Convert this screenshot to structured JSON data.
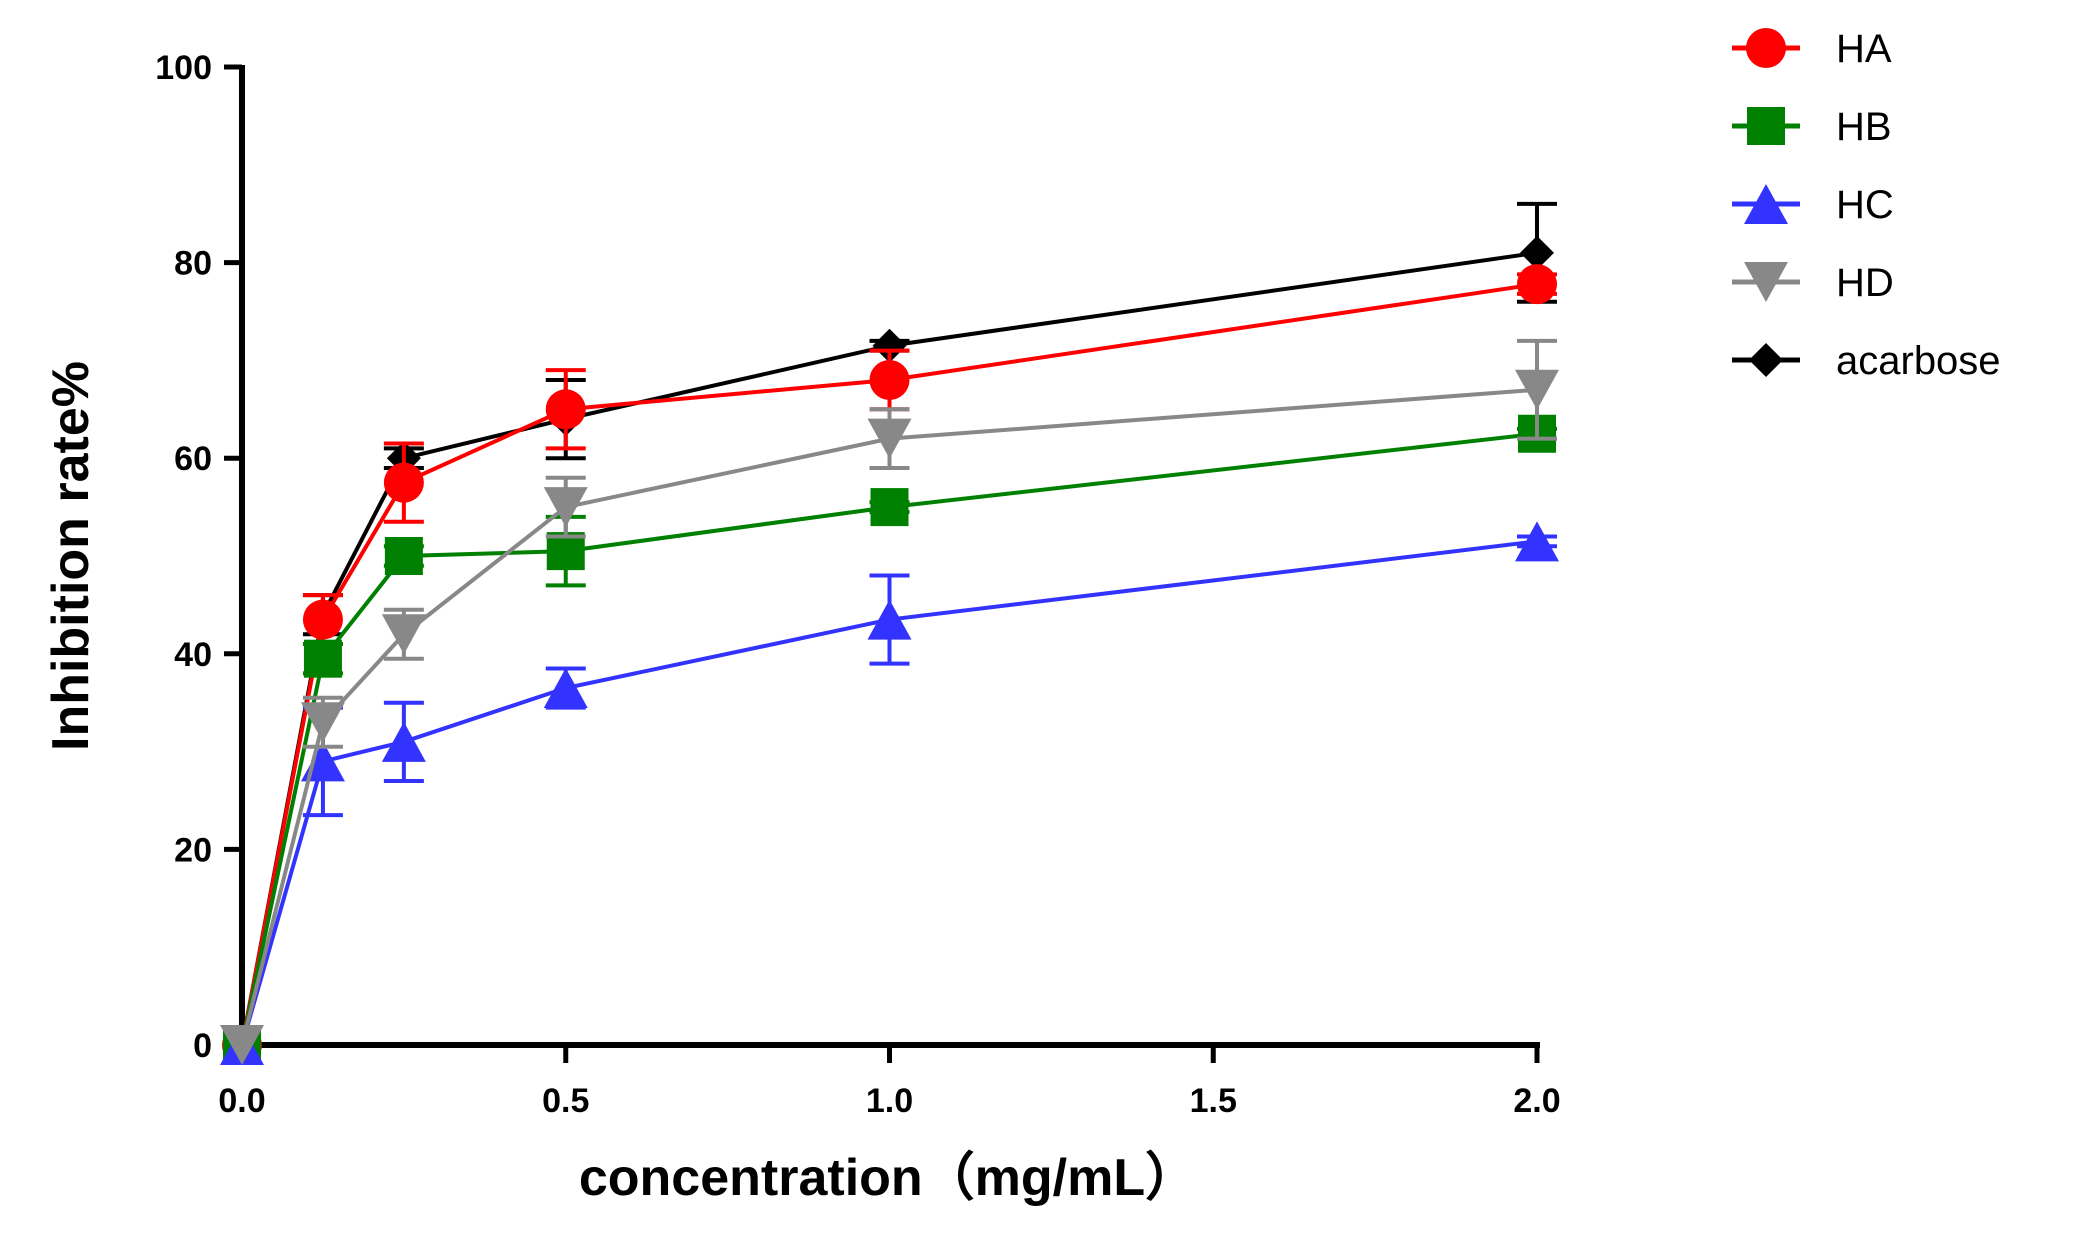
{
  "chart_data": {
    "type": "line",
    "title": "",
    "xlabel": "concentration（mg/mL）",
    "ylabel": "Inhibition rate%",
    "xlim": [
      0,
      2
    ],
    "ylim": [
      0,
      100
    ],
    "xticks": [
      0,
      0.5,
      1,
      1.5,
      2
    ],
    "xtick_labels": [
      "0.0",
      "0.5",
      "1.0",
      "1.5",
      "2.0"
    ],
    "yticks": [
      0,
      20,
      40,
      60,
      80,
      100
    ],
    "ytick_labels": [
      "0",
      "20",
      "40",
      "60",
      "80",
      "100"
    ],
    "legend_position": "top-right outside",
    "x": [
      0,
      0.125,
      0.25,
      0.5,
      1,
      2
    ],
    "series": [
      {
        "name": "acarbose",
        "color": "#000000",
        "marker": "diamond",
        "values": [
          0,
          44,
          60,
          64,
          71.5,
          81
        ],
        "errors": [
          0,
          2,
          1,
          4,
          0.5,
          5
        ]
      },
      {
        "name": "HA",
        "color": "#ff0000",
        "marker": "circle",
        "values": [
          0,
          43.5,
          57.5,
          65,
          68,
          77.8
        ],
        "errors": [
          0,
          2.5,
          4,
          4,
          3,
          1
        ]
      },
      {
        "name": "HB",
        "color": "#008000",
        "marker": "square",
        "values": [
          0,
          39.5,
          50,
          50.5,
          55,
          62.5
        ],
        "errors": [
          0,
          1.5,
          1,
          3.5,
          0.5,
          0.5
        ]
      },
      {
        "name": "HC",
        "color": "#3333ff",
        "marker": "triangle-up",
        "values": [
          0,
          29,
          31,
          36.5,
          43.5,
          51.5
        ],
        "errors": [
          0,
          5.5,
          4,
          2,
          4.5,
          0.5
        ]
      },
      {
        "name": "HD",
        "color": "#888888",
        "marker": "triangle-down",
        "values": [
          0,
          33,
          42,
          55,
          62,
          67
        ],
        "errors": [
          0,
          2.5,
          2.5,
          3,
          3,
          5
        ]
      }
    ],
    "legend_order": [
      "HA",
      "HB",
      "HC",
      "HD",
      "acarbose"
    ]
  }
}
